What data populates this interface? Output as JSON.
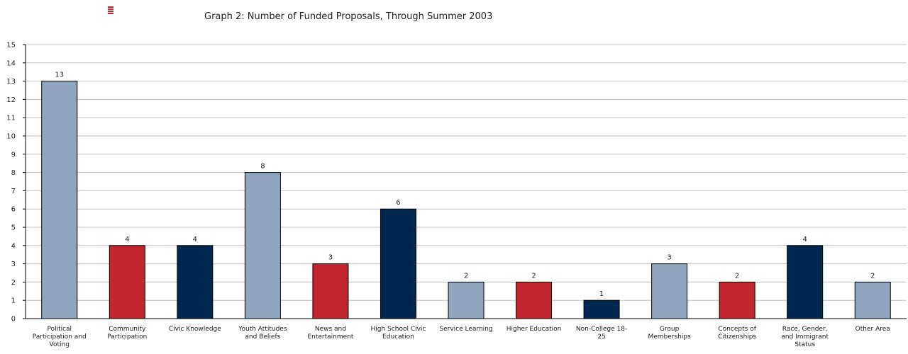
{
  "chart_data": {
    "type": "bar",
    "title": "Graph 2: Number of Funded Proposals, Through Summer 2003",
    "xlabel": "",
    "ylabel": "",
    "ylim": [
      0,
      15
    ],
    "yticks": [
      "0",
      "1",
      "2",
      "3",
      "4",
      "5",
      "6",
      "7",
      "8",
      "9",
      "10",
      "11",
      "12",
      "13",
      "14",
      "15"
    ],
    "grid": true,
    "categories": [
      "Political Participation and Voting",
      "Community Participation",
      "Civic Knowledge",
      "Youth Attitudes and Beliefs",
      "News and Entertainment",
      "High School Civic Education",
      "Service Learning",
      "Higher Education",
      "Non-College 18-25",
      "Group Memberships",
      "Concepts of Citizenships",
      "Race, Gender, and Immigrant Status",
      "Other Area"
    ],
    "category_label_lines": [
      [
        "Political",
        "Participation and",
        "Voting"
      ],
      [
        "Community",
        "Participation"
      ],
      [
        "Civic Knowledge"
      ],
      [
        "Youth Attitudes",
        "and Beliefs"
      ],
      [
        "News and",
        "Entertainment"
      ],
      [
        "High School Civic",
        "Education"
      ],
      [
        "Service Learning"
      ],
      [
        "Higher Education"
      ],
      [
        "Non-College 18-",
        "25"
      ],
      [
        "Group",
        "Memberships"
      ],
      [
        "Concepts of",
        "Citizenships"
      ],
      [
        "Race, Gender,",
        "and Immigrant",
        "Status"
      ],
      [
        "Other Area"
      ]
    ],
    "values": [
      13,
      4,
      4,
      8,
      3,
      6,
      2,
      2,
      1,
      3,
      2,
      4,
      2
    ],
    "data_labels": [
      "13",
      "4",
      "4",
      "8",
      "3",
      "6",
      "2",
      "2",
      "1",
      "3",
      "2",
      "4",
      "2"
    ],
    "bar_colors": [
      "#92a5be",
      "#c1272d",
      "#00274f",
      "#92a5be",
      "#c1272d",
      "#00274f",
      "#92a5be",
      "#c1272d",
      "#00274f",
      "#92a5be",
      "#c1272d",
      "#00274f",
      "#92a5be"
    ],
    "gridline_color": "#c0c0c0",
    "logo_color": "#c1272d"
  }
}
